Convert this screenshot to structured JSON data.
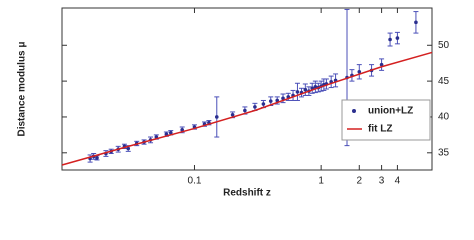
{
  "chart_data": {
    "type": "scatter",
    "xscale": "log",
    "xlabel": "Redshift z",
    "ylabel": "Distance modulus μ",
    "xlim": [
      0.009,
      7.5
    ],
    "ylim": [
      32.6,
      55.2
    ],
    "xticks": [
      0.1,
      1,
      2,
      3,
      4
    ],
    "yticks": [
      35,
      40,
      45,
      50
    ],
    "grid": false,
    "legend": "lower right",
    "series": [
      {
        "name": "union+LZ",
        "color": "#2b2f8f",
        "error_color": "#4a4fb8",
        "x": [
          0.015,
          0.016,
          0.017,
          0.02,
          0.022,
          0.025,
          0.028,
          0.03,
          0.035,
          0.04,
          0.045,
          0.05,
          0.06,
          0.065,
          0.08,
          0.1,
          0.12,
          0.13,
          0.15,
          0.2,
          0.25,
          0.3,
          0.35,
          0.4,
          0.45,
          0.5,
          0.55,
          0.6,
          0.65,
          0.7,
          0.75,
          0.8,
          0.85,
          0.9,
          0.95,
          1.0,
          1.05,
          1.1,
          1.2,
          1.3,
          1.6,
          1.75,
          2.0,
          2.5,
          3.0,
          3.5,
          4.0,
          5.6
        ],
        "values": [
          34.2,
          34.5,
          34.3,
          34.9,
          35.2,
          35.5,
          35.9,
          35.6,
          36.3,
          36.5,
          36.8,
          37.2,
          37.6,
          37.8,
          38.2,
          38.6,
          39.0,
          39.2,
          40.0,
          40.3,
          40.9,
          41.4,
          41.8,
          42.2,
          42.3,
          42.6,
          42.8,
          43.0,
          43.5,
          43.4,
          43.8,
          43.6,
          44.0,
          44.2,
          44.1,
          44.3,
          44.5,
          44.6,
          44.9,
          45.1,
          45.5,
          45.8,
          46.3,
          46.5,
          47.3,
          50.8,
          51.0,
          53.2
        ],
        "errors": [
          0.5,
          0.4,
          0.3,
          0.4,
          0.3,
          0.4,
          0.3,
          0.4,
          0.3,
          0.3,
          0.4,
          0.3,
          0.3,
          0.3,
          0.4,
          0.3,
          0.3,
          0.3,
          2.8,
          0.4,
          0.5,
          0.5,
          0.5,
          0.6,
          0.5,
          0.6,
          0.5,
          0.7,
          1.2,
          0.6,
          0.8,
          0.6,
          0.7,
          0.8,
          0.6,
          0.7,
          0.8,
          0.7,
          0.8,
          0.9,
          9.5,
          0.8,
          1.0,
          0.8,
          0.8,
          0.9,
          0.8,
          1.5
        ]
      },
      {
        "name": "fit LZ",
        "color": "#d42020",
        "kind": "line",
        "x": [
          0.009,
          0.03,
          0.1,
          0.3,
          1,
          3,
          7.5
        ],
        "values": [
          33.3,
          35.9,
          38.4,
          40.9,
          44.2,
          47.0,
          49.0
        ]
      }
    ]
  }
}
